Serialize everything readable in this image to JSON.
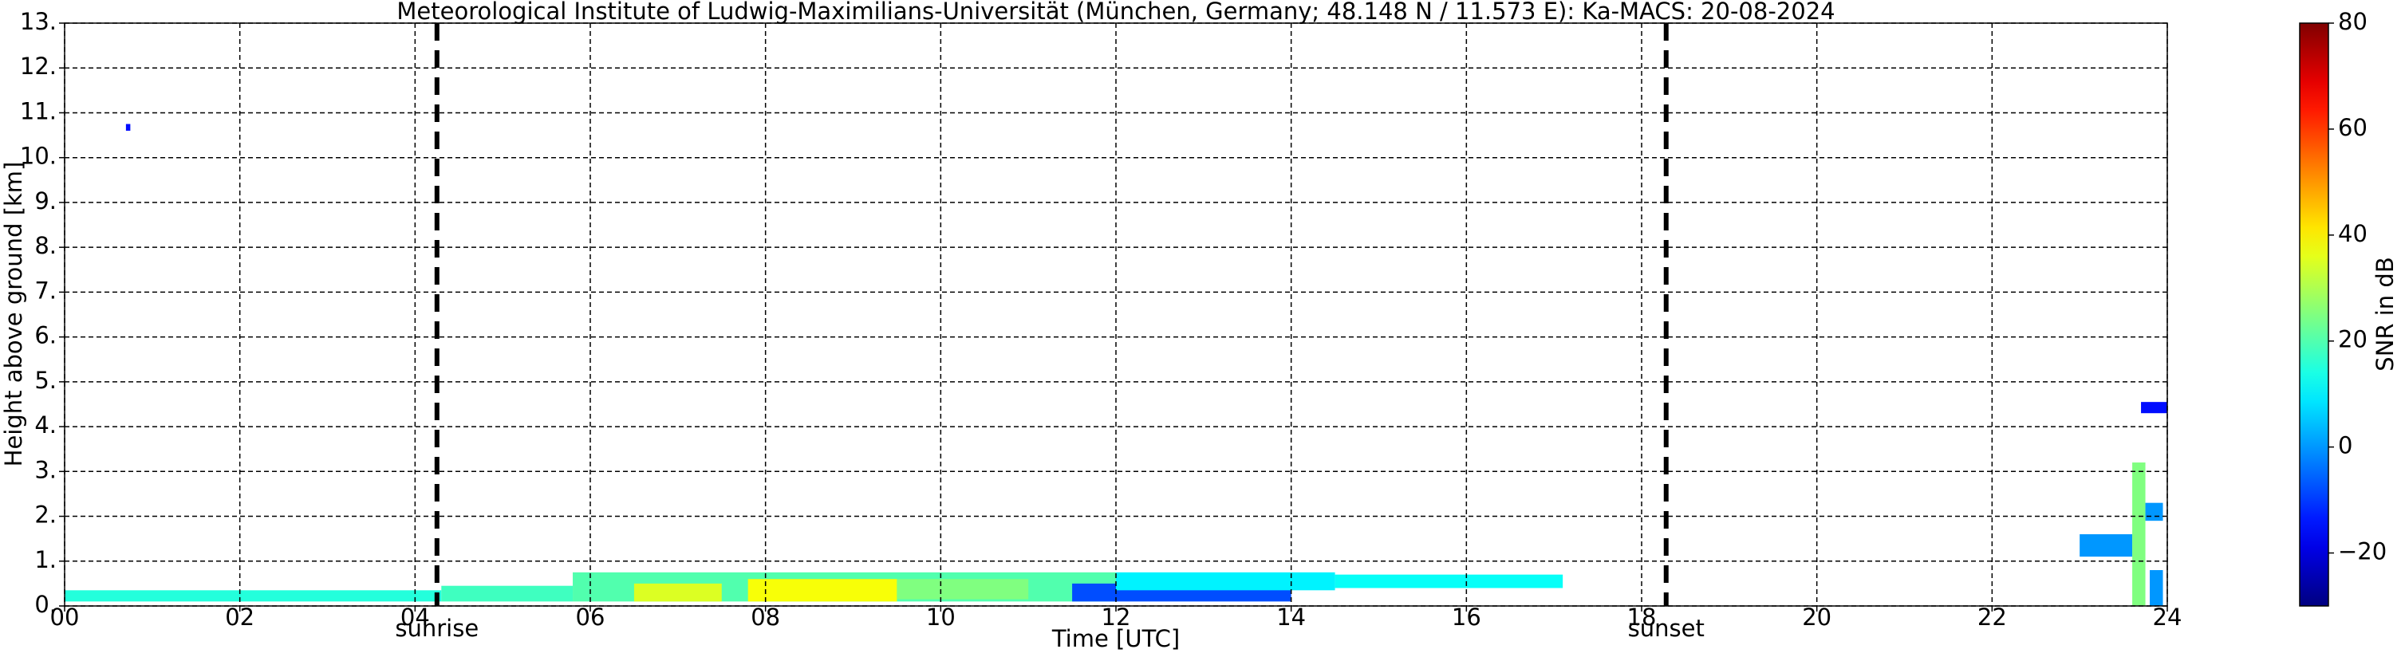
{
  "chart_data": {
    "type": "heatmap",
    "title": "Meteorological Institute of Ludwig-Maximilians-Universität (München, Germany; 48.148 N / 11.573 E):    Ka-MACS: 20-08-2024",
    "x_label": "Time [UTC]",
    "y_label": "Height above ground [km]",
    "colorbar_label": "SNR in dB",
    "xlim": [
      0,
      24
    ],
    "xticks": [
      {
        "value": 0,
        "label": "00"
      },
      {
        "value": 2,
        "label": "02"
      },
      {
        "value": 4,
        "label": "04"
      },
      {
        "value": 6,
        "label": "06"
      },
      {
        "value": 8,
        "label": "08"
      },
      10,
      12,
      14,
      16,
      18,
      20,
      22,
      24
    ],
    "ylim": [
      0,
      13
    ],
    "yticks": [
      {
        "value": 0,
        "label": "0."
      },
      {
        "value": 1,
        "label": "1."
      },
      {
        "value": 2,
        "label": "2."
      },
      {
        "value": 3,
        "label": "3."
      },
      {
        "value": 4,
        "label": "4."
      },
      {
        "value": 5,
        "label": "5."
      },
      {
        "value": 6,
        "label": "6."
      },
      {
        "value": 7,
        "label": "7."
      },
      {
        "value": 8,
        "label": "8."
      },
      {
        "value": 9,
        "label": "9."
      },
      {
        "value": 10,
        "label": "10."
      },
      {
        "value": 11,
        "label": "11."
      },
      {
        "value": 12,
        "label": "12."
      },
      {
        "value": 13,
        "label": "13."
      }
    ],
    "clim": [
      -30,
      80
    ],
    "cticks": [
      {
        "value": -20,
        "label": "−20"
      },
      0,
      20,
      40,
      60,
      80
    ],
    "colormap": "jet",
    "grid": true,
    "sun_lines": [
      {
        "x": 4.25,
        "label": "sunrise"
      },
      {
        "x": 18.28,
        "label": "sunset"
      }
    ],
    "echoes": [
      {
        "x": [
          0,
          4.3
        ],
        "y": [
          0.1,
          0.35
        ],
        "value": 15
      },
      {
        "x": [
          4.3,
          5.8
        ],
        "y": [
          0.1,
          0.45
        ],
        "value": 18
      },
      {
        "x": [
          5.8,
          12
        ],
        "y": [
          0.1,
          0.75
        ],
        "value": 20
      },
      {
        "x": [
          6.5,
          7.5
        ],
        "y": [
          0.1,
          0.5
        ],
        "value": 35
      },
      {
        "x": [
          7.8,
          9.5
        ],
        "y": [
          0.1,
          0.6
        ],
        "value": 38
      },
      {
        "x": [
          9.5,
          11
        ],
        "y": [
          0.15,
          0.6
        ],
        "value": 25
      },
      {
        "x": [
          11.5,
          14
        ],
        "y": [
          0.1,
          0.5
        ],
        "value": -8
      },
      {
        "x": [
          12,
          14.5
        ],
        "y": [
          0.35,
          0.75
        ],
        "value": 10
      },
      {
        "x": [
          14.5,
          17.1
        ],
        "y": [
          0.4,
          0.7
        ],
        "value": 12
      },
      {
        "x": [
          0.7,
          0.75
        ],
        "y": [
          10.6,
          10.75
        ],
        "value": -15
      },
      {
        "x": [
          23.7,
          24
        ],
        "y": [
          4.3,
          4.55
        ],
        "value": -15
      },
      {
        "x": [
          23,
          23.6
        ],
        "y": [
          1.1,
          1.6
        ],
        "value": 0
      },
      {
        "x": [
          23.6,
          23.75
        ],
        "y": [
          0,
          3.2
        ],
        "value": 25
      },
      {
        "x": [
          23.75,
          23.95
        ],
        "y": [
          1.9,
          2.3
        ],
        "value": 0
      },
      {
        "x": [
          23.8,
          23.95
        ],
        "y": [
          0,
          0.8
        ],
        "value": 0
      }
    ]
  }
}
